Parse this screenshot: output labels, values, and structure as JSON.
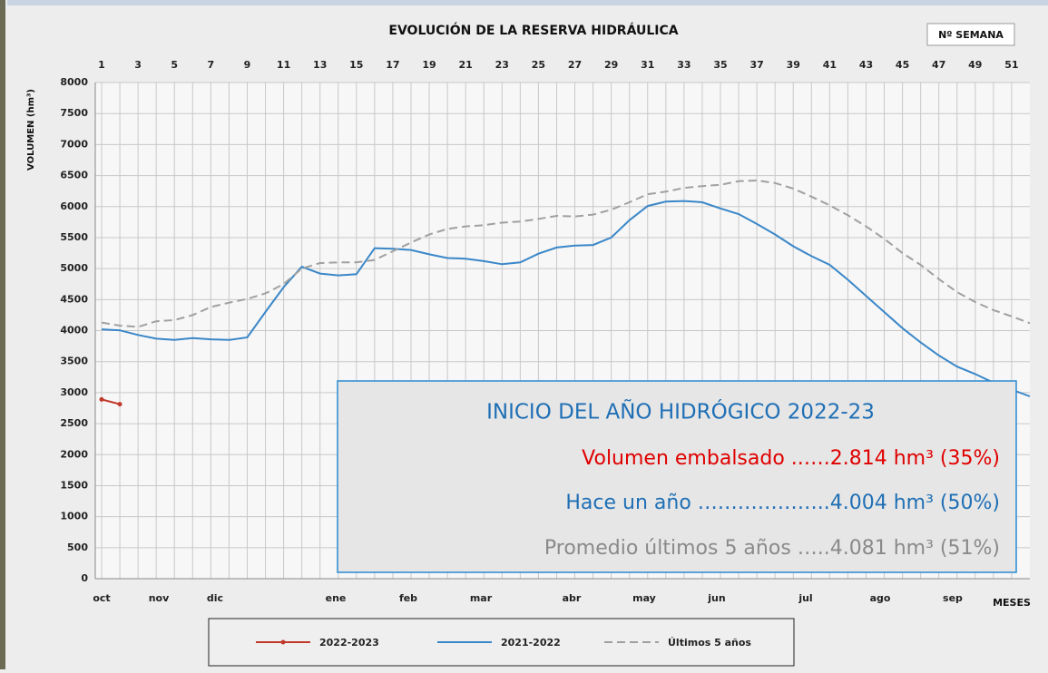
{
  "chart_data": {
    "type": "line",
    "title": "EVOLUCIÓN DE LA RESERVA HIDRÁULICA",
    "x_axis_top_label": "Nº SEMANA",
    "x_axis_label": "MESES",
    "y_axis_label": "VOLUMEN (hm³)",
    "months": [
      "oct",
      "nov",
      "dic",
      "ene",
      "feb",
      "mar",
      "abr",
      "may",
      "jun",
      "jul",
      "ago",
      "sep"
    ],
    "x": [
      1,
      2,
      3,
      4,
      5,
      6,
      7,
      8,
      9,
      10,
      11,
      12,
      13,
      14,
      15,
      16,
      17,
      18,
      19,
      20,
      21,
      22,
      23,
      24,
      25,
      26,
      27,
      28,
      29,
      30,
      31,
      32,
      33,
      34,
      35,
      36,
      37,
      38,
      39,
      40,
      41,
      42,
      43,
      44,
      45,
      46,
      47,
      48,
      49,
      50,
      51,
      52
    ],
    "xlim": [
      1,
      52
    ],
    "xticks": [
      1,
      3,
      5,
      7,
      9,
      11,
      13,
      15,
      17,
      19,
      21,
      23,
      25,
      27,
      29,
      31,
      33,
      35,
      37,
      39,
      41,
      43,
      45,
      47,
      49,
      51
    ],
    "ylim": [
      0,
      8000
    ],
    "yticks": [
      0,
      500,
      1000,
      1500,
      2000,
      2500,
      3000,
      3500,
      4000,
      4500,
      5000,
      5500,
      6000,
      6500,
      7000,
      7500,
      8000
    ],
    "grid": true,
    "series": [
      {
        "name": "2022-2023",
        "color": "#c0392b",
        "style": "solid",
        "markers": true,
        "values": [
          2890,
          2814,
          null,
          null,
          null,
          null,
          null,
          null,
          null,
          null,
          null,
          null,
          null,
          null,
          null,
          null,
          null,
          null,
          null,
          null,
          null,
          null,
          null,
          null,
          null,
          null,
          null,
          null,
          null,
          null,
          null,
          null,
          null,
          null,
          null,
          null,
          null,
          null,
          null,
          null,
          null,
          null,
          null,
          null,
          null,
          null,
          null,
          null,
          null,
          null,
          null,
          null
        ]
      },
      {
        "name": "2021-2022",
        "color": "#3a87c8",
        "style": "solid",
        "markers": false,
        "values": [
          4020,
          4004,
          3930,
          3870,
          3850,
          3880,
          3860,
          3850,
          3890,
          4300,
          4700,
          5030,
          4920,
          4890,
          4910,
          5330,
          5320,
          5300,
          5230,
          5170,
          5160,
          5120,
          5070,
          5100,
          5240,
          5340,
          5370,
          5380,
          5500,
          5780,
          6010,
          6080,
          6090,
          6070,
          5970,
          5880,
          5720,
          5550,
          5360,
          5200,
          5060,
          4820,
          4560,
          4300,
          4040,
          3810,
          3600,
          3420,
          3300,
          3160,
          3050,
          2940
        ]
      },
      {
        "name": "Últimos 5 años",
        "color": "#a0a0a0",
        "style": "dashed",
        "markers": false,
        "values": [
          4130,
          4081,
          4060,
          4150,
          4170,
          4250,
          4380,
          4450,
          4510,
          4600,
          4750,
          5000,
          5090,
          5100,
          5100,
          5140,
          5280,
          5420,
          5550,
          5640,
          5680,
          5700,
          5740,
          5760,
          5800,
          5850,
          5840,
          5870,
          5950,
          6070,
          6200,
          6240,
          6300,
          6330,
          6350,
          6410,
          6420,
          6380,
          6290,
          6160,
          6020,
          5860,
          5680,
          5480,
          5250,
          5060,
          4830,
          4620,
          4460,
          4330,
          4230,
          4120
        ]
      }
    ],
    "annotation": {
      "title": "INICIO DEL AÑO HIDRÓGICO 2022-23",
      "lines": [
        "Volumen embalsado ..….2.814 hm³ (35%)",
        "Hace un año ………………..4.004 hm³ (50%)",
        "Promedio últimos 5 años …..4.081 hm³ (51%)"
      ]
    }
  }
}
